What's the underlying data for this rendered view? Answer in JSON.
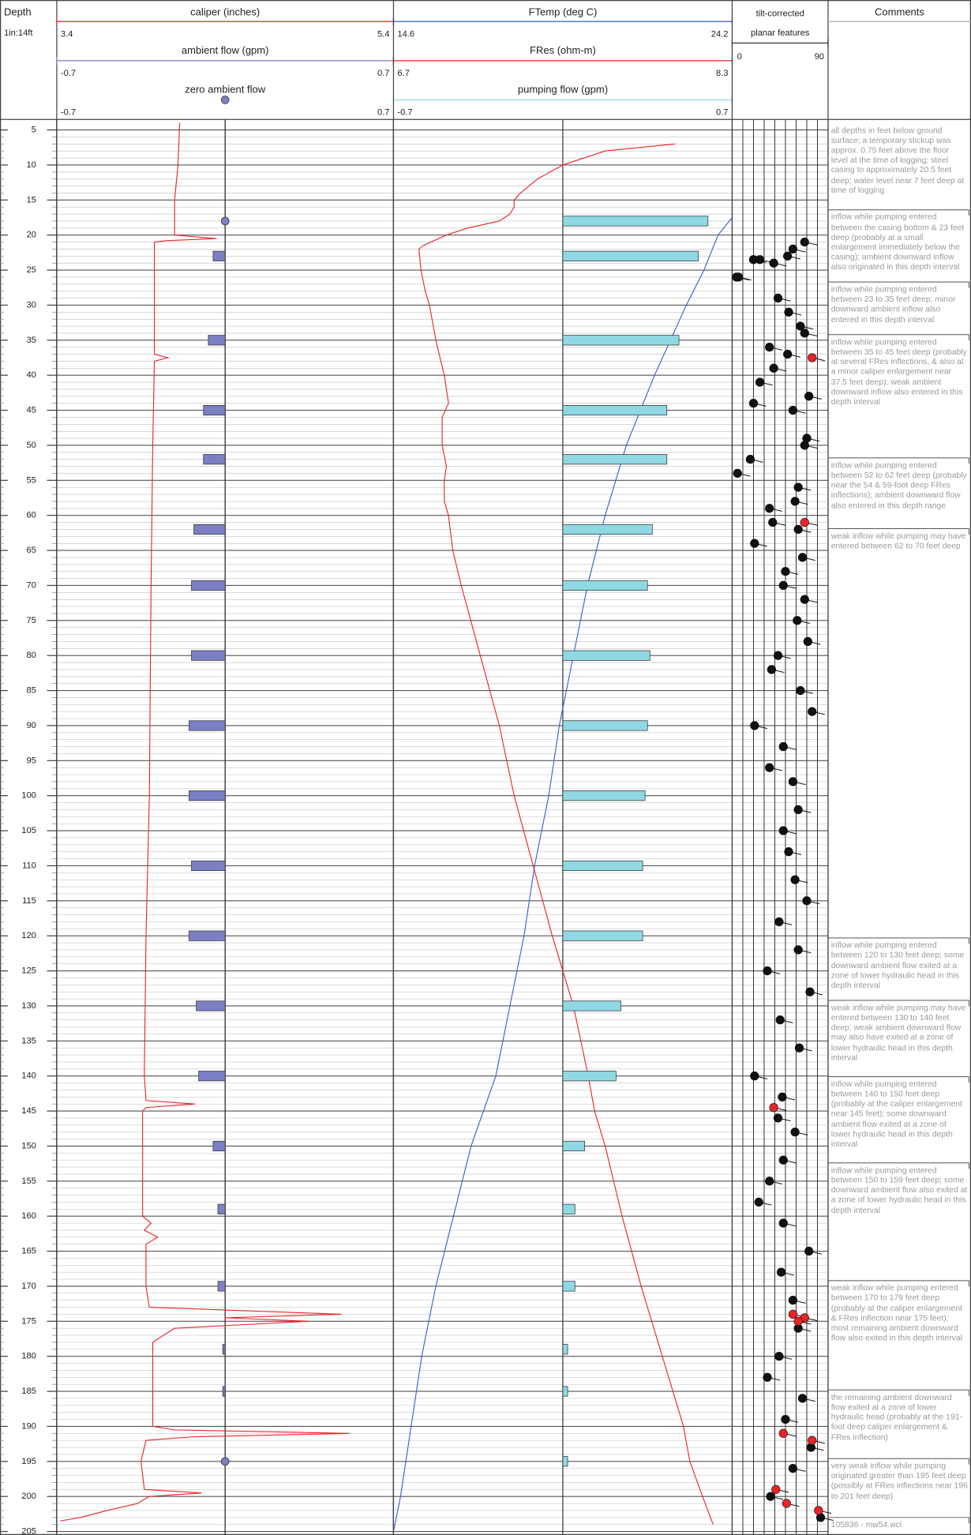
{
  "chart_data": {
    "type": "well_log",
    "depth_title": "Depth",
    "depth_scale": "1in:14ft",
    "ylim": [
      3.5,
      205.5
    ],
    "yticks": [
      5,
      10,
      15,
      20,
      25,
      30,
      35,
      40,
      45,
      50,
      55,
      60,
      65,
      70,
      75,
      80,
      85,
      90,
      95,
      100,
      105,
      110,
      115,
      120,
      125,
      130,
      135,
      140,
      145,
      150,
      155,
      160,
      165,
      170,
      175,
      180,
      185,
      190,
      195,
      200,
      205
    ],
    "minor_divisions": 5,
    "tracks": [
      {
        "type": "line",
        "title": "caliper (inches)",
        "color": "#e8242a",
        "xlim": [
          3.4,
          5.4
        ],
        "xticks": [
          3.4,
          4.4,
          5.4
        ],
        "depth": [
          4,
          10,
          15,
          18,
          20,
          20.5,
          20.8,
          21,
          30,
          37,
          37.5,
          38,
          50,
          70,
          100,
          120,
          140,
          143.5,
          144,
          144.5,
          145,
          160,
          161,
          162,
          163,
          164,
          170,
          173,
          174,
          174.5,
          175,
          175.5,
          176,
          178,
          190,
          190.5,
          191,
          191.5,
          192,
          195,
          199,
          199.5,
          200,
          201,
          202,
          203,
          203.5
        ],
        "values": [
          4.13,
          4.12,
          4.1,
          4.1,
          4.1,
          4.35,
          4.05,
          3.98,
          3.98,
          3.98,
          4.06,
          3.98,
          3.97,
          3.96,
          3.95,
          3.93,
          3.92,
          3.93,
          4.22,
          3.93,
          3.91,
          3.91,
          3.96,
          3.92,
          4.0,
          3.93,
          3.93,
          3.95,
          5.09,
          4.4,
          4.9,
          4.5,
          4.1,
          3.97,
          3.97,
          4.1,
          5.14,
          4.2,
          3.93,
          3.9,
          3.92,
          4.26,
          3.95,
          3.88,
          3.7,
          3.54,
          3.42
        ]
      },
      {
        "type": "bar",
        "title": "ambient flow (gpm)",
        "color": "#7b7fc4",
        "xlim": [
          -0.7,
          0.7
        ],
        "xticks": [
          -0.7,
          0,
          0.7
        ],
        "depth": [
          23,
          35,
          45,
          52,
          62,
          70,
          80,
          90,
          100,
          110,
          120,
          130,
          140,
          150,
          159,
          170,
          179,
          185
        ],
        "values": [
          -0.05,
          -0.07,
          -0.09,
          -0.09,
          -0.13,
          -0.14,
          -0.14,
          -0.15,
          -0.15,
          -0.14,
          -0.15,
          -0.12,
          -0.11,
          -0.05,
          -0.03,
          -0.03,
          -0.01,
          -0.01
        ]
      },
      {
        "type": "scatter",
        "title": "zero ambient flow",
        "color": "#7b7fc4",
        "xlim": [
          -0.7,
          0.7
        ],
        "depth": [
          18,
          195
        ],
        "values": [
          0,
          0
        ]
      },
      {
        "type": "line",
        "title": "FTemp (deg C)",
        "color": "#3a5cc8",
        "xlim": [
          14.6,
          24.2
        ],
        "xticks": [
          14.6,
          19.4,
          24.2
        ],
        "depth": [
          17.5,
          20,
          25,
          30,
          40,
          50,
          60,
          70,
          80,
          90,
          100,
          110,
          120,
          130,
          140,
          150,
          160,
          170,
          180,
          190,
          200,
          205
        ],
        "values": [
          24.2,
          23.8,
          23.4,
          22.9,
          22.0,
          21.2,
          20.6,
          20.1,
          19.7,
          19.3,
          19.0,
          18.6,
          18.3,
          17.9,
          17.5,
          16.8,
          16.3,
          15.8,
          15.4,
          15.1,
          14.8,
          14.6
        ]
      },
      {
        "type": "line",
        "title": "FRes (ohm-m)",
        "color": "#e8242a",
        "xlim": [
          6.7,
          8.3
        ],
        "depth": [
          7,
          8,
          9,
          10,
          12,
          14,
          15,
          16,
          17,
          18,
          19,
          20,
          21.5,
          22,
          25,
          28,
          30,
          35,
          40,
          44,
          46,
          50,
          53,
          55,
          58,
          60,
          65,
          70,
          80,
          90,
          100,
          110,
          120,
          125,
          130,
          140,
          145,
          150,
          160,
          170,
          175,
          180,
          190,
          195,
          200,
          204
        ],
        "values": [
          8.03,
          7.7,
          7.6,
          7.5,
          7.38,
          7.3,
          7.27,
          7.27,
          7.25,
          7.2,
          7.05,
          6.95,
          6.84,
          6.82,
          6.83,
          6.85,
          6.87,
          6.9,
          6.94,
          6.96,
          6.93,
          6.93,
          6.95,
          6.94,
          6.94,
          6.96,
          6.98,
          7.02,
          7.11,
          7.2,
          7.27,
          7.36,
          7.45,
          7.5,
          7.55,
          7.62,
          7.65,
          7.7,
          7.78,
          7.87,
          7.92,
          7.97,
          8.07,
          8.1,
          8.16,
          8.21
        ]
      },
      {
        "type": "bar",
        "title": "pumping flow (gpm)",
        "color": "#8fd8e4",
        "xlim": [
          -0.7,
          0.7
        ],
        "xticks": [
          -0.7,
          0,
          0.7
        ],
        "depth": [
          18,
          23,
          35,
          45,
          52,
          62,
          70,
          80,
          90,
          100,
          110,
          120,
          130,
          140,
          150,
          159,
          170,
          179,
          185,
          195
        ],
        "values": [
          0.6,
          0.56,
          0.48,
          0.43,
          0.43,
          0.37,
          0.35,
          0.36,
          0.35,
          0.34,
          0.33,
          0.33,
          0.24,
          0.22,
          0.09,
          0.05,
          0.05,
          0.02,
          0.02,
          0.02
        ]
      },
      {
        "type": "tadpole",
        "title": [
          "tilt-corrected",
          "planar features"
        ],
        "xlim": [
          0,
          90
        ],
        "xticks": [
          0,
          10,
          20,
          30,
          40,
          50,
          60,
          70,
          80,
          90
        ],
        "series": [
          {
            "color": "#111111",
            "depth": [
              21,
              22,
              23,
              24,
              23.5,
              23.5,
              26,
              26,
              29,
              31,
              33,
              34,
              36,
              37,
              39,
              41,
              43,
              44,
              45,
              49,
              50,
              52,
              54,
              56,
              58,
              59,
              61,
              62,
              64,
              66,
              68,
              70,
              72,
              75,
              78,
              80,
              82,
              85,
              88,
              90,
              93,
              96,
              98,
              102,
              105,
              108,
              112,
              115,
              118,
              122,
              125,
              128,
              132,
              136,
              140,
              143,
              146,
              148,
              152,
              155,
              158,
              161,
              165,
              168,
              172,
              176,
              180,
              183,
              186,
              189,
              193,
              196,
              200,
              203
            ],
            "values": [
              68,
              57,
              52,
              39,
              26,
              20,
              6,
              4,
              43,
              53,
              64,
              68,
              35,
              52,
              39,
              26,
              72,
              20,
              57,
              70,
              68,
              17,
              5,
              62,
              59,
              35,
              38,
              62,
              21,
              66,
              50,
              48,
              68,
              61,
              71,
              43,
              37,
              64,
              75,
              21,
              48,
              35,
              57,
              62,
              48,
              53,
              59,
              70,
              44,
              62,
              33,
              73,
              45,
              63,
              21,
              47,
              43,
              59,
              48,
              35,
              25,
              48,
              72,
              46,
              57,
              62,
              44,
              33,
              66,
              50,
              74,
              57,
              36,
              83
            ]
          },
          {
            "color": "#e8242a",
            "depth": [
              37.5,
              61,
              144.5,
              174,
              174.5,
              175,
              191,
              192,
              199,
              202,
              201
            ],
            "values": [
              75,
              68,
              39,
              57,
              68,
              62,
              48,
              75,
              41,
              81,
              51
            ]
          }
        ]
      },
      {
        "type": "text",
        "title": "Comments",
        "items": [
          {
            "depth": 4,
            "text": "all depths in feet below ground surface; a temporary stickup was approx. 0.75 feet above the floor level at the time of logging; steel casing to approximately 20.5 feet deep; water level near 7 feet deep at time of logging"
          },
          {
            "depth": 16.4,
            "text": "inflow while pumping entered between the casing bottom & 23 feet deep (probably at a small enlargement immediately below the casing); ambient downward inflow also originated in this depth interval"
          },
          {
            "depth": 26.7,
            "text": "inflow while pumping entered between 23 to 35 feet deep; minor downward ambient inflow also entered in this depth interval"
          },
          {
            "depth": 34.2,
            "text": "inflow while pumping entered between 35 to 45 feet deep (probably at several FRes inflections, & also at a minor caliper enlargement near 37.5 feet deep); weak ambient downward inflow also entered in this depth interval"
          },
          {
            "depth": 51.8,
            "text": "inflow while pumping entered between 52 to 62 feet deep (probably near the 54 & 59-foot deep FRes inflections); ambient downward flow also entered in this depth range"
          },
          {
            "depth": 61.9,
            "text": "weak inflow while pumping may have entered between 62 to 70 feet deep"
          },
          {
            "depth": 120.3,
            "text": "inflow while pumping entered between 120 to 130 feet deep; some downward ambient flow exited at a zone of lower hydraulic head in this depth interval"
          },
          {
            "depth": 129.2,
            "text": "weak inflow while pumping may have entered between 130 to 140 feet deep; weak ambient downward flow may also have exited at a zone of lower hydraulic head in this depth interval"
          },
          {
            "depth": 140.1,
            "text": "inflow while pumping entered between 140 to 150 feet deep (probably at the caliper enlargement near 145 feet); some downward ambient flow exited at a zone of lower hydraulic head in this depth interval"
          },
          {
            "depth": 152.4,
            "text": "inflow while pumping entered between 150 to 159 feet deep; some downward ambient flow also exited at a zone of lower hydraulic head in this depth interval"
          },
          {
            "depth": 169.2,
            "text": "weak inflow while pumping entered between 170 to 179 feet deep (probably at the caliper enlargement & FRes inflection near 175 feet); most remaining ambient downward flow also exited in this depth interval"
          },
          {
            "depth": 184.8,
            "text": "the remaining ambient downward flow exited at a zone of lower hydraulic head (probably at the 191-foot deep caliper enlargement & FRes inflection)"
          },
          {
            "depth": 194.6,
            "text": "very weak inflow while pumping originated greater than 195 feet deep (possibly at FRes inflections near 196 to 201 feet deep)"
          },
          {
            "depth": 203,
            "text": "105836 - mw54.wcl"
          }
        ]
      }
    ]
  }
}
